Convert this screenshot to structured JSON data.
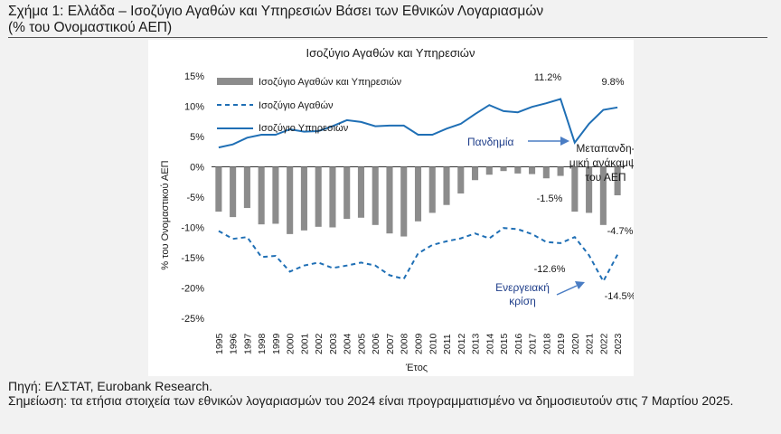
{
  "figure": {
    "title_line1": "Σχήμα 1: Ελλάδα – Ισοζύγιο Αγαθών και Υπηρεσιών Βάσει των Εθνικών Λογαριασμών",
    "title_line2": "(% του Ονομαστικού ΑΕΠ)",
    "source": "Πηγή: ΕΛΣΤΑΤ, Eurobank Research.",
    "note": "Σημείωση: τα ετήσια στοιχεία των εθνικών λογαριασμών του 2024 είναι προγραμματισμένο να δημοσιευτούν στις 7 Μαρτίου 2025."
  },
  "chart_data": {
    "type": "bar",
    "title": "Ισοζύγιο Αγαθών και Υπηρεσιών",
    "xlabel": "Έτος",
    "ylabel": "% του Ονομαστικού ΑΕΠ",
    "ylim": [
      -25,
      15
    ],
    "yticks": [
      15,
      10,
      5,
      0,
      -5,
      -10,
      -15,
      -20,
      -25
    ],
    "ytick_labels": [
      "15%",
      "10%",
      "5%",
      "0%",
      "-5%",
      "-10%",
      "-15%",
      "-20%",
      "-25%"
    ],
    "grid": false,
    "legend_position": "top-left",
    "categories": [
      "1995",
      "1996",
      "1997",
      "1998",
      "1999",
      "2000",
      "2001",
      "2002",
      "2003",
      "2004",
      "2005",
      "2006",
      "2007",
      "2008",
      "2009",
      "2010",
      "2011",
      "2012",
      "2013",
      "2014",
      "2015",
      "2016",
      "2017",
      "2018",
      "2019",
      "2020",
      "2021",
      "2022",
      "2023"
    ],
    "series": [
      {
        "name": "Ισοζύγιο Αγαθών και Υπηρεσιών",
        "type": "bar",
        "color": "#8c8c8c",
        "values": [
          -7.4,
          -8.3,
          -6.8,
          -9.5,
          -9.4,
          -11.1,
          -10.5,
          -9.9,
          -10.0,
          -8.6,
          -8.4,
          -9.6,
          -11.0,
          -11.5,
          -9.0,
          -7.6,
          -6.3,
          -4.4,
          -2.2,
          -1.3,
          -0.7,
          -1.1,
          -1.2,
          -1.9,
          -1.5,
          -7.4,
          -7.6,
          -9.6,
          -4.7
        ]
      },
      {
        "name": "Ισοζύγιο Αγαθών",
        "type": "line",
        "style": "dashed",
        "color": "#1f6fb5",
        "values": [
          -10.6,
          -11.9,
          -11.6,
          -14.9,
          -14.7,
          -17.3,
          -16.3,
          -15.8,
          -16.7,
          -16.3,
          -15.8,
          -16.3,
          -17.9,
          -18.5,
          -14.3,
          -12.9,
          -12.3,
          -11.8,
          -11.0,
          -11.8,
          -10.1,
          -10.3,
          -11.1,
          -12.4,
          -12.6,
          -11.6,
          -14.6,
          -18.9,
          -14.5
        ]
      },
      {
        "name": "Ισοζύγιο Υπηρεσιών",
        "type": "line",
        "style": "solid",
        "color": "#1f6fb5",
        "values": [
          3.2,
          3.7,
          4.8,
          5.3,
          5.3,
          6.2,
          5.8,
          5.9,
          6.7,
          7.7,
          7.4,
          6.7,
          6.8,
          6.8,
          5.3,
          5.3,
          6.3,
          7.1,
          8.7,
          10.2,
          9.2,
          9.0,
          9.9,
          10.5,
          11.2,
          4.0,
          7.1,
          9.4,
          9.8
        ]
      }
    ],
    "data_labels": [
      "11.2%",
      "9.8%",
      "-1.5%",
      "-4.7%",
      "-12.6%",
      "-14.5%"
    ],
    "annotations": {
      "pandemic": "Πανδημία",
      "recovery": [
        "Μεταπανδη-",
        "μική ανάκαμψη",
        "του ΑΕΠ"
      ],
      "energy": [
        "Ενεργειακή",
        "κρίση"
      ]
    }
  }
}
